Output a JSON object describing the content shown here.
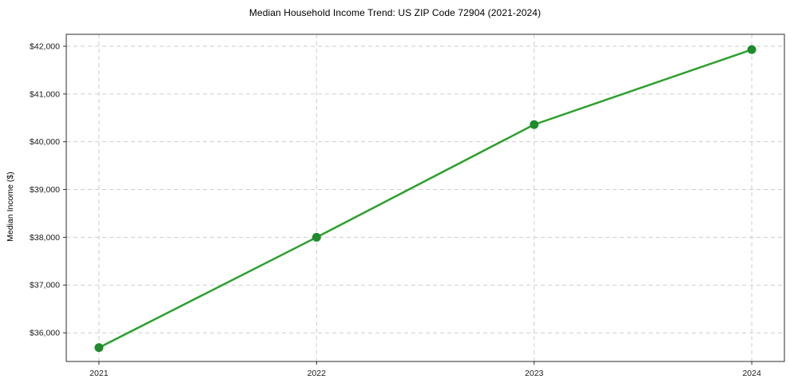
{
  "chart_data": {
    "type": "line",
    "title": "Median Household Income Trend: US ZIP Code 72904 (2021-2024)",
    "xlabel": "",
    "ylabel": "Median Income ($)",
    "x": [
      2021,
      2022,
      2023,
      2024
    ],
    "series": [
      {
        "values": [
          35690,
          38000,
          40360,
          41930
        ],
        "line_color": "#2ca02c",
        "marker_color": "#1e8b2d"
      }
    ],
    "xticks": {
      "values": [
        2021,
        2022,
        2023,
        2024
      ],
      "labels": [
        "2021",
        "2022",
        "2023",
        "2024"
      ]
    },
    "yticks": {
      "values": [
        36000,
        37000,
        38000,
        39000,
        40000,
        41000,
        42000
      ],
      "labels": [
        "$36,000",
        "$37,000",
        "$38,000",
        "$39,000",
        "$40,000",
        "$41,000",
        "$42,000"
      ]
    },
    "xlim": [
      2020.85,
      2024.15
    ],
    "ylim": [
      35400,
      42250
    ],
    "grid": {
      "show": true,
      "style": "dashed",
      "color": "#cdcdcd"
    },
    "legend": {
      "show": false
    },
    "colors": {
      "spine": "#2b2b2b",
      "tick_text": "#1a1a1a",
      "background": "#ffffff"
    }
  }
}
